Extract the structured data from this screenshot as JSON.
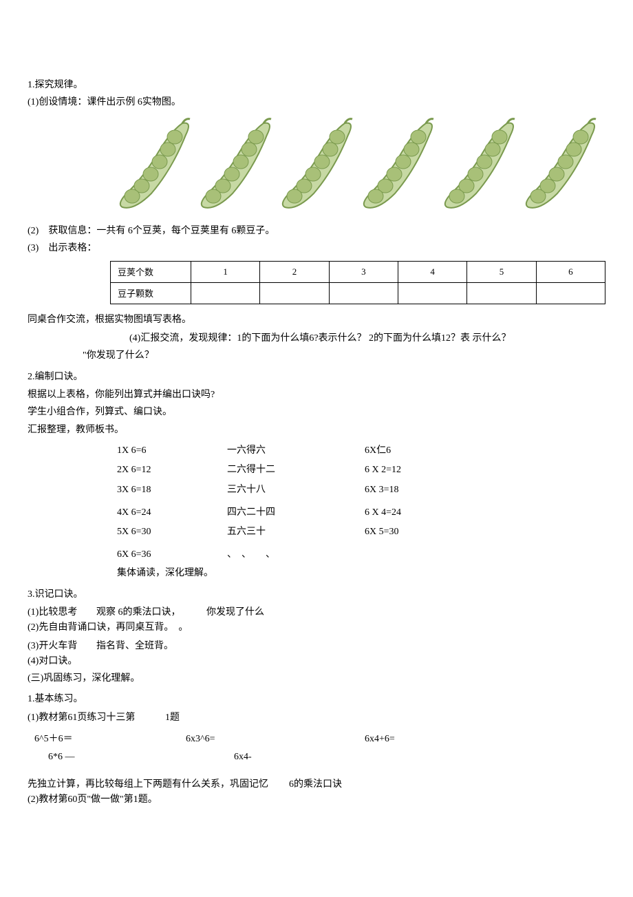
{
  "section1": {
    "title": "1.探究规律。",
    "line1": "(1)创设情境：课件出示例 6实物图。",
    "line2": "(2)　获取信息：一共有 6个豆荚，每个豆荚里有 6颗豆子。",
    "line3": "(3)　出示表格："
  },
  "pods": {
    "count": 6,
    "fill": "#c7d9a4",
    "stroke": "#7a9a4e",
    "bean": "#a8c078"
  },
  "table": {
    "row1": [
      "豆荚个数",
      "1",
      "2",
      "3",
      "4",
      "5",
      "6"
    ],
    "row2": [
      "豆子颗数",
      "",
      "",
      "",
      "",
      "",
      ""
    ]
  },
  "after_table": {
    "l1": "同桌合作交流，根据实物图填写表格。",
    "l2a": "(4)汇报交流，发现规律：1的下面为什么填6?表示什么？ 2的下面为什么填12？表 示什么？",
    "l2b": "\"你发现了什么？"
  },
  "section2": {
    "title": "2.编制口诀。",
    "l1": "根据以上表格，你能列出算式并编出口诀吗?",
    "l2": "学生小组合作，列算式、编口诀。",
    "l3": "汇报整理，教师板书。"
  },
  "mult": {
    "r1": {
      "a": "1X 6=6",
      "b": "一六得六",
      "c": "6X仁6"
    },
    "r2": {
      "a": "2X 6=12",
      "b": "二六得十二",
      "c": "6 X 2=12"
    },
    "r3": {
      "a": "3X 6=18",
      "b": "三六十八",
      "c": "6X 3=18"
    },
    "r4": {
      "a": "4X 6=24",
      "b": "四六二十四",
      "c": "6 X 4=24"
    },
    "r5": {
      "a": "5X 6=30",
      "b": "五六三十",
      "c": "6X 5=30"
    },
    "r6": {
      "a": "6X 6=36",
      "b": "、　、　　、",
      "c": ""
    },
    "after": "集体诵读，深化理解。"
  },
  "section3": {
    "title": "3.识记口诀。",
    "l1a": "(1)比较思考",
    "l1b": "观察 6的乘法口诀，",
    "l1c": "你发现了什么",
    "l2": "(2)先自由背诵口诀，再同桌互背。　。",
    "l3a": "(3)开火车背",
    "l3b": "指名背、全班背。",
    "l4": "(4)对口诀。",
    "l5": "(三)巩固练习，深化理解。"
  },
  "section4": {
    "title": "1.基本练习。",
    "l1a": "(1)教材第61页练习十三第",
    "l1b": "1题"
  },
  "bottom": {
    "r1": {
      "a": "6^5＋6＝",
      "b": "6x3^6=",
      "c": "6x4+6="
    },
    "r2": {
      "a": "6*6 —",
      "b": "6x4-",
      "c": ""
    }
  },
  "final": {
    "l1a": "先独立计算，再比较每组上下两题有什么关系，巩固记忆",
    "l1b": "6的乘法口诀",
    "l2": "(2)教材第60页\"做一做\"第1题。"
  }
}
